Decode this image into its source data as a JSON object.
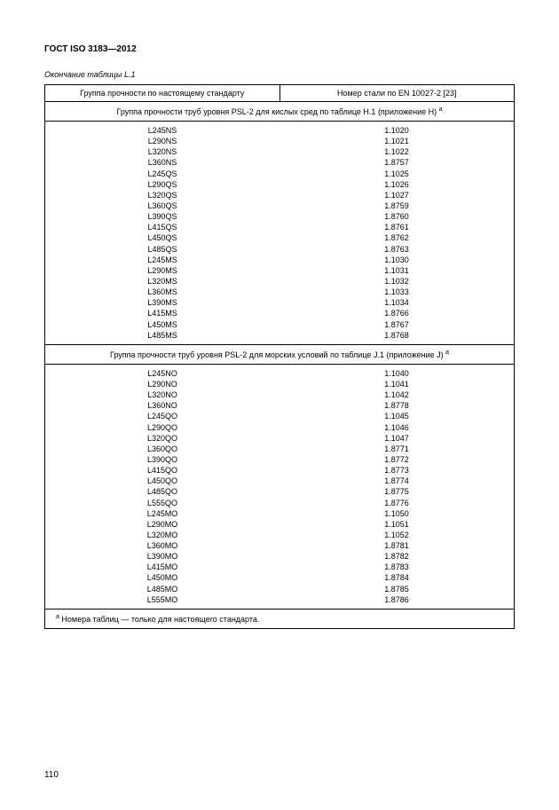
{
  "doc_title": "ГОСТ ISO 3183—2012",
  "table_caption": "Окончание таблицы L.1",
  "headers": {
    "left": "Группа прочности по настоящему стандарту",
    "right": "Номер стали по  EN 10027-2 [23]"
  },
  "section1": {
    "title": "Группа прочности труб уровня PSL-2 для кислых сред по таблице H.1 (приложение H) ",
    "sup": "a",
    "rows": [
      {
        "g": "L245NS",
        "n": "1.1020"
      },
      {
        "g": "L290NS",
        "n": "1.1021"
      },
      {
        "g": "L320NS",
        "n": "1.1022"
      },
      {
        "g": "L360NS",
        "n": "1.8757"
      },
      {
        "g": "L245QS",
        "n": "1.1025"
      },
      {
        "g": "L290QS",
        "n": "1.1026"
      },
      {
        "g": "L320QS",
        "n": "1.1027"
      },
      {
        "g": "L360QS",
        "n": "1.8759"
      },
      {
        "g": "L390QS",
        "n": "1.8760"
      },
      {
        "g": "L415QS",
        "n": "1.8761"
      },
      {
        "g": "L450QS",
        "n": "1.8762"
      },
      {
        "g": "L485QS",
        "n": "1.8763"
      },
      {
        "g": "L245MS",
        "n": "1.1030"
      },
      {
        "g": "L290MS",
        "n": "1.1031"
      },
      {
        "g": "L320MS",
        "n": "1.1032"
      },
      {
        "g": "L360MS",
        "n": "1.1033"
      },
      {
        "g": "L390MS",
        "n": "1.1034"
      },
      {
        "g": "L415MS",
        "n": "1.8766"
      },
      {
        "g": "L450MS",
        "n": "1.8767"
      },
      {
        "g": "L485MS",
        "n": "1.8768"
      }
    ]
  },
  "section2": {
    "title": "Группа прочности труб уровня PSL-2 для морских условий по таблице J.1 (приложение J) ",
    "sup": "a",
    "rows": [
      {
        "g": "L245NO",
        "n": "1.1040"
      },
      {
        "g": "L290NO",
        "n": "1.1041"
      },
      {
        "g": "L320NO",
        "n": "1.1042"
      },
      {
        "g": "L360NO",
        "n": "1.8778"
      },
      {
        "g": "L245QO",
        "n": "1.1045"
      },
      {
        "g": "L290QO",
        "n": "1.1046"
      },
      {
        "g": "L320QO",
        "n": "1.1047"
      },
      {
        "g": "L360QO",
        "n": "1.8771"
      },
      {
        "g": "L390QO",
        "n": "1.8772"
      },
      {
        "g": "L415QO",
        "n": "1.8773"
      },
      {
        "g": "L450QO",
        "n": "1.8774"
      },
      {
        "g": "L485QO",
        "n": "1.8775"
      },
      {
        "g": "L555QO",
        "n": "1.8776"
      },
      {
        "g": "L245MO",
        "n": "1.1050"
      },
      {
        "g": "L290MO",
        "n": "1.1051"
      },
      {
        "g": "L320MO",
        "n": "1.1052"
      },
      {
        "g": "L360MO",
        "n": "1.8781"
      },
      {
        "g": "L390MO",
        "n": "1.8782"
      },
      {
        "g": "L415MO",
        "n": "1.8783"
      },
      {
        "g": "L450MO",
        "n": "1.8784"
      },
      {
        "g": "L485MO",
        "n": "1.8785"
      },
      {
        "g": "L555MO",
        "n": "1.8786"
      }
    ]
  },
  "footnote_sup": "a",
  "footnote": " Номера таблиц — только для настоящего стандарта.",
  "page_number": "110"
}
